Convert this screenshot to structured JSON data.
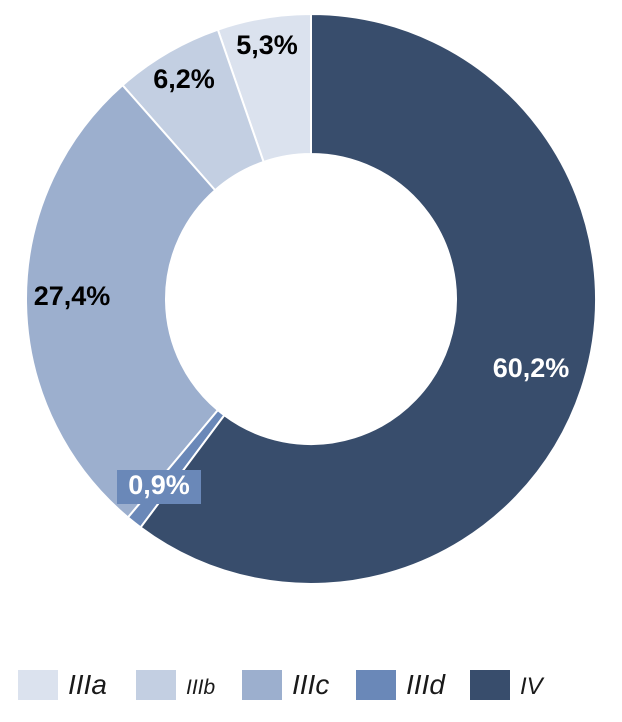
{
  "chart_data": {
    "type": "pie",
    "style": "donut",
    "start": "12 o'clock",
    "direction": "counter-clockwise",
    "slices": [
      {
        "name": "IIIa",
        "value": 5.3,
        "label": "5,3%",
        "color": "#dbe2ee",
        "label_color": "#000000"
      },
      {
        "name": "IIIb",
        "value": 6.2,
        "label": "6,2%",
        "color": "#c3cfe2",
        "label_color": "#000000"
      },
      {
        "name": "IIIc",
        "value": 27.4,
        "label": "27,4%",
        "color": "#9cafce",
        "label_color": "#000000"
      },
      {
        "name": "IIId",
        "value": 0.9,
        "label": "0,9%",
        "color": "#6a88b8",
        "label_color": "#ffffff"
      },
      {
        "name": "IV",
        "value": 60.2,
        "label": "60,2%",
        "color": "#384d6c",
        "label_color": "#ffffff"
      }
    ],
    "legend": {
      "position": "bottom",
      "entries": [
        "IIIa",
        "IIIb",
        "IIIc",
        "IIId",
        "IV"
      ]
    }
  }
}
